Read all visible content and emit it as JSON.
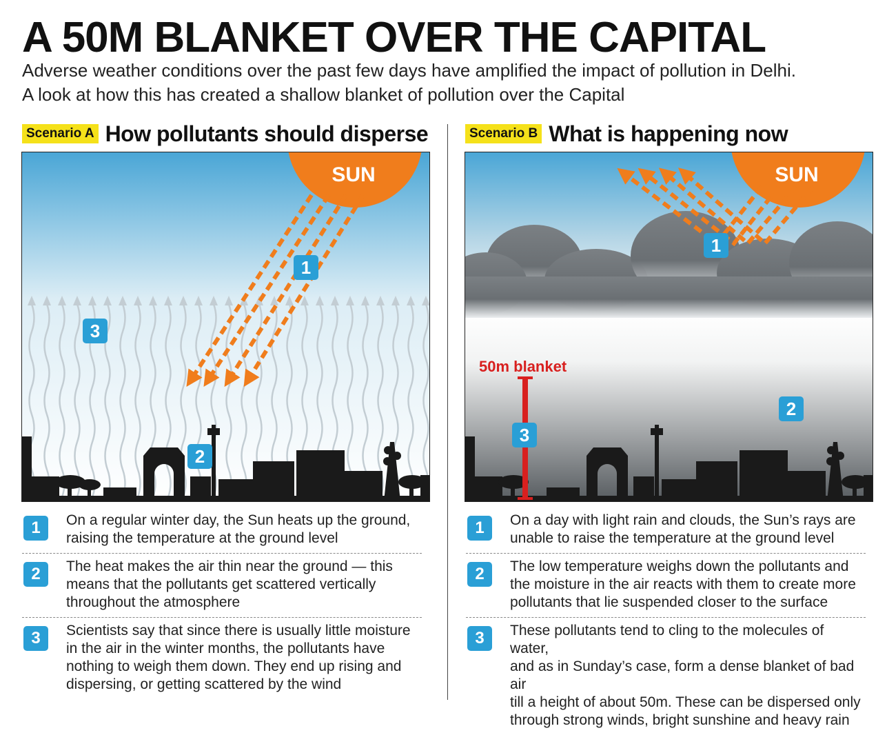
{
  "title": "A 50M BLANKET OVER THE CAPITAL",
  "subtitle_lines": [
    "Adverse weather conditions over the past few days have amplified the impact of pollution in Delhi.",
    "A look at how this has created a shallow blanket of pollution over the Capital"
  ],
  "scenario_a": {
    "tag": "Scenario A",
    "title": "How pollutants should disperse",
    "sun_label": "SUN",
    "markers": [
      "1",
      "2",
      "3"
    ],
    "notes": [
      {
        "num": "1",
        "lines": [
          "On a regular winter day, the Sun heats up the ground,",
          "raising the temperature at the ground level"
        ]
      },
      {
        "num": "2",
        "lines": [
          "The heat makes the air thin near the ground — this",
          "means that the pollutants get scattered vertically",
          "throughout the atmosphere"
        ]
      },
      {
        "num": "3",
        "lines": [
          "Scientists say that since there is usually little moisture",
          "in the air in the winter months, the pollutants have",
          "nothing to weigh them down. They end up rising and",
          "dispersing, or getting scattered by the wind"
        ]
      }
    ]
  },
  "scenario_b": {
    "tag": "Scenario B",
    "title": "What is happening now",
    "sun_label": "SUN",
    "blanket_label": "50m blanket",
    "markers": [
      "1",
      "2",
      "3"
    ],
    "notes": [
      {
        "num": "1",
        "lines": [
          "On a day with light rain and clouds, the Sun’s rays are",
          "unable to raise the temperature at the ground level"
        ]
      },
      {
        "num": "2",
        "lines": [
          "The low temperature weighs down the pollutants and",
          "the moisture in the air reacts with them to create more",
          "pollutants that lie suspended closer to the surface"
        ]
      },
      {
        "num": "3",
        "lines": [
          "These pollutants tend to cling to the molecules of water,",
          "and as in Sunday’s case, form a dense blanket of bad air",
          "till a height of about 50m. These can be dispersed only",
          "through strong winds, bright sunshine and heavy rain"
        ]
      }
    ]
  },
  "colors": {
    "sun": "#f07d1c",
    "ray": "#f07d1c",
    "badge": "#2a9fd6",
    "blanket": "#d8201f",
    "tag": "#f5e11a",
    "sky_top": "#4aa6d6",
    "smog": "#5a5f62",
    "cloud": "#6f7478"
  }
}
